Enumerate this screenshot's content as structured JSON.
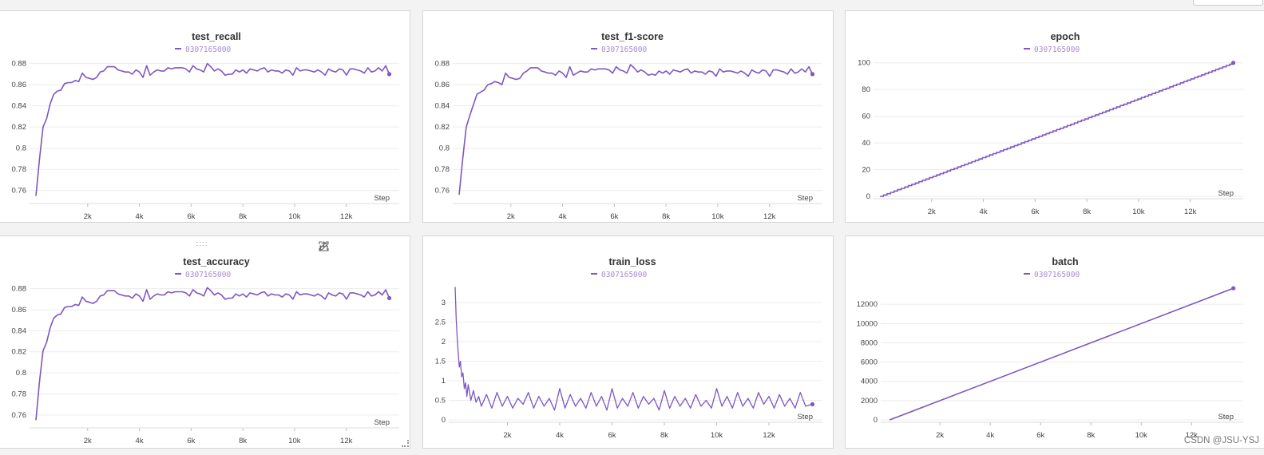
{
  "colors": {
    "line": "#7e57c2",
    "legend": "#a98bd3"
  },
  "axis_step_label": "Step",
  "watermark": "CSDN @JSU-YSJ",
  "toolbar_icons": [
    "share-icon",
    "edit-icon",
    "fullscreen-icon",
    "more-icon"
  ],
  "chart_data": [
    {
      "id": "test_recall",
      "type": "line",
      "title": "test_recall",
      "legend": "0307165000",
      "xlabel": "Step",
      "xlim": [
        0,
        13800
      ],
      "ylim": [
        0.75,
        0.885
      ],
      "xticks": [
        2000,
        4000,
        6000,
        8000,
        10000,
        12000
      ],
      "xtick_labels": [
        "2k",
        "4k",
        "6k",
        "8k",
        "10k",
        "12k"
      ],
      "yticks": [
        0.76,
        0.78,
        0.8,
        0.82,
        0.84,
        0.86,
        0.88
      ],
      "ytick_labels": [
        "0.76",
        "0.78",
        "0.8",
        "0.82",
        "0.84",
        "0.86",
        "0.88"
      ],
      "x": [
        0,
        138,
        276,
        414,
        552,
        690,
        828,
        966,
        1104,
        1242,
        1380,
        1518,
        1656,
        1794,
        1932,
        2070,
        2208,
        2346,
        2484,
        2622,
        2760,
        2898,
        3036,
        3174,
        3312,
        3450,
        3588,
        3726,
        3864,
        4002,
        4140,
        4278,
        4416,
        4554,
        4692,
        4830,
        4968,
        5106,
        5244,
        5382,
        5520,
        5658,
        5796,
        5934,
        6072,
        6210,
        6348,
        6486,
        6624,
        6762,
        6900,
        7038,
        7176,
        7314,
        7452,
        7590,
        7728,
        7866,
        8004,
        8142,
        8280,
        8418,
        8556,
        8694,
        8832,
        8970,
        9108,
        9246,
        9384,
        9522,
        9660,
        9798,
        9936,
        10074,
        10212,
        10350,
        10488,
        10626,
        10764,
        10902,
        11040,
        11178,
        11316,
        11454,
        11592,
        11730,
        11868,
        12006,
        12144,
        12282,
        12420,
        12558,
        12696,
        12834,
        12972,
        13110,
        13248,
        13386,
        13524,
        13662
      ],
      "values": [
        0.755,
        0.79,
        0.82,
        0.828,
        0.842,
        0.851,
        0.854,
        0.855,
        0.861,
        0.862,
        0.862,
        0.864,
        0.863,
        0.871,
        0.867,
        0.866,
        0.865,
        0.867,
        0.872,
        0.873,
        0.877,
        0.877,
        0.877,
        0.874,
        0.873,
        0.872,
        0.872,
        0.87,
        0.874,
        0.872,
        0.867,
        0.878,
        0.869,
        0.872,
        0.874,
        0.873,
        0.873,
        0.876,
        0.875,
        0.876,
        0.876,
        0.876,
        0.875,
        0.872,
        0.878,
        0.875,
        0.874,
        0.872,
        0.88,
        0.877,
        0.873,
        0.875,
        0.873,
        0.869,
        0.87,
        0.87,
        0.874,
        0.872,
        0.874,
        0.871,
        0.875,
        0.874,
        0.873,
        0.875,
        0.876,
        0.872,
        0.874,
        0.873,
        0.873,
        0.871,
        0.874,
        0.873,
        0.869,
        0.876,
        0.873,
        0.874,
        0.874,
        0.873,
        0.872,
        0.874,
        0.872,
        0.869,
        0.875,
        0.873,
        0.872,
        0.875,
        0.874,
        0.869,
        0.875,
        0.875,
        0.874,
        0.873,
        0.871,
        0.876,
        0.872,
        0.873,
        0.876,
        0.873,
        0.878,
        0.87
      ]
    },
    {
      "id": "test_f1_score",
      "type": "line",
      "title": "test_f1-score",
      "legend": "0307165000",
      "xlabel": "Step",
      "xlim": [
        0,
        13800
      ],
      "ylim": [
        0.75,
        0.885
      ],
      "xticks": [
        2000,
        4000,
        6000,
        8000,
        10000,
        12000
      ],
      "xtick_labels": [
        "2k",
        "4k",
        "6k",
        "8k",
        "10k",
        "12k"
      ],
      "yticks": [
        0.76,
        0.78,
        0.8,
        0.82,
        0.84,
        0.86,
        0.88
      ],
      "ytick_labels": [
        "0.76",
        "0.78",
        "0.8",
        "0.82",
        "0.84",
        "0.86",
        "0.88"
      ],
      "x": [
        0,
        138,
        276,
        414,
        552,
        690,
        828,
        966,
        1104,
        1242,
        1380,
        1518,
        1656,
        1794,
        1932,
        2070,
        2208,
        2346,
        2484,
        2622,
        2760,
        2898,
        3036,
        3174,
        3312,
        3450,
        3588,
        3726,
        3864,
        4002,
        4140,
        4278,
        4416,
        4554,
        4692,
        4830,
        4968,
        5106,
        5244,
        5382,
        5520,
        5658,
        5796,
        5934,
        6072,
        6210,
        6348,
        6486,
        6624,
        6762,
        6900,
        7038,
        7176,
        7314,
        7452,
        7590,
        7728,
        7866,
        8004,
        8142,
        8280,
        8418,
        8556,
        8694,
        8832,
        8970,
        9108,
        9246,
        9384,
        9522,
        9660,
        9798,
        9936,
        10074,
        10212,
        10350,
        10488,
        10626,
        10764,
        10902,
        11040,
        11178,
        11316,
        11454,
        11592,
        11730,
        11868,
        12006,
        12144,
        12282,
        12420,
        12558,
        12696,
        12834,
        12972,
        13110,
        13248,
        13386,
        13524,
        13662
      ],
      "values": [
        0.756,
        0.79,
        0.82,
        0.831,
        0.841,
        0.851,
        0.853,
        0.855,
        0.86,
        0.861,
        0.863,
        0.862,
        0.86,
        0.871,
        0.867,
        0.866,
        0.865,
        0.866,
        0.871,
        0.873,
        0.876,
        0.876,
        0.876,
        0.873,
        0.872,
        0.871,
        0.871,
        0.869,
        0.873,
        0.871,
        0.867,
        0.877,
        0.869,
        0.871,
        0.873,
        0.872,
        0.872,
        0.875,
        0.874,
        0.875,
        0.875,
        0.875,
        0.874,
        0.871,
        0.877,
        0.874,
        0.873,
        0.871,
        0.879,
        0.876,
        0.872,
        0.874,
        0.872,
        0.869,
        0.87,
        0.869,
        0.873,
        0.871,
        0.873,
        0.87,
        0.874,
        0.873,
        0.872,
        0.874,
        0.875,
        0.871,
        0.873,
        0.872,
        0.872,
        0.87,
        0.873,
        0.872,
        0.868,
        0.875,
        0.872,
        0.873,
        0.873,
        0.872,
        0.871,
        0.873,
        0.871,
        0.868,
        0.874,
        0.872,
        0.871,
        0.874,
        0.873,
        0.868,
        0.874,
        0.874,
        0.873,
        0.872,
        0.87,
        0.875,
        0.871,
        0.872,
        0.875,
        0.872,
        0.877,
        0.87
      ]
    },
    {
      "id": "epoch",
      "type": "line",
      "title": "epoch",
      "legend": "0307165000",
      "xlabel": "Step",
      "xlim": [
        0,
        13800
      ],
      "ylim": [
        0,
        104
      ],
      "xticks": [
        2000,
        4000,
        6000,
        8000,
        10000,
        12000
      ],
      "xtick_labels": [
        "2k",
        "4k",
        "6k",
        "8k",
        "10k",
        "12k"
      ],
      "yticks": [
        0,
        20,
        40,
        60,
        80,
        100
      ],
      "ytick_labels": [
        "0",
        "20",
        "40",
        "60",
        "80",
        "100"
      ],
      "x": [
        0,
        13662
      ],
      "values": [
        0,
        100
      ],
      "shape": "staircase"
    },
    {
      "id": "test_accuracy",
      "type": "line",
      "title": "test_accuracy",
      "legend": "0307165000",
      "xlabel": "Step",
      "xlim": [
        0,
        13800
      ],
      "ylim": [
        0.75,
        0.885
      ],
      "xticks": [
        2000,
        4000,
        6000,
        8000,
        10000,
        12000
      ],
      "xtick_labels": [
        "2k",
        "4k",
        "6k",
        "8k",
        "10k",
        "12k"
      ],
      "yticks": [
        0.76,
        0.78,
        0.8,
        0.82,
        0.84,
        0.86,
        0.88
      ],
      "ytick_labels": [
        "0.76",
        "0.78",
        "0.8",
        "0.82",
        "0.84",
        "0.86",
        "0.88"
      ],
      "x": [
        0,
        138,
        276,
        414,
        552,
        690,
        828,
        966,
        1104,
        1242,
        1380,
        1518,
        1656,
        1794,
        1932,
        2070,
        2208,
        2346,
        2484,
        2622,
        2760,
        2898,
        3036,
        3174,
        3312,
        3450,
        3588,
        3726,
        3864,
        4002,
        4140,
        4278,
        4416,
        4554,
        4692,
        4830,
        4968,
        5106,
        5244,
        5382,
        5520,
        5658,
        5796,
        5934,
        6072,
        6210,
        6348,
        6486,
        6624,
        6762,
        6900,
        7038,
        7176,
        7314,
        7452,
        7590,
        7728,
        7866,
        8004,
        8142,
        8280,
        8418,
        8556,
        8694,
        8832,
        8970,
        9108,
        9246,
        9384,
        9522,
        9660,
        9798,
        9936,
        10074,
        10212,
        10350,
        10488,
        10626,
        10764,
        10902,
        11040,
        11178,
        11316,
        11454,
        11592,
        11730,
        11868,
        12006,
        12144,
        12282,
        12420,
        12558,
        12696,
        12834,
        12972,
        13110,
        13248,
        13386,
        13524,
        13662
      ],
      "values": [
        0.755,
        0.792,
        0.821,
        0.829,
        0.843,
        0.852,
        0.855,
        0.856,
        0.862,
        0.863,
        0.863,
        0.865,
        0.864,
        0.872,
        0.868,
        0.867,
        0.866,
        0.868,
        0.873,
        0.874,
        0.878,
        0.878,
        0.878,
        0.875,
        0.874,
        0.873,
        0.873,
        0.871,
        0.875,
        0.873,
        0.868,
        0.879,
        0.87,
        0.873,
        0.875,
        0.874,
        0.874,
        0.877,
        0.876,
        0.877,
        0.877,
        0.877,
        0.876,
        0.873,
        0.879,
        0.876,
        0.875,
        0.873,
        0.881,
        0.878,
        0.874,
        0.876,
        0.874,
        0.87,
        0.871,
        0.871,
        0.875,
        0.873,
        0.875,
        0.872,
        0.876,
        0.875,
        0.874,
        0.876,
        0.877,
        0.873,
        0.875,
        0.874,
        0.874,
        0.872,
        0.875,
        0.874,
        0.87,
        0.877,
        0.874,
        0.875,
        0.875,
        0.874,
        0.873,
        0.875,
        0.873,
        0.87,
        0.876,
        0.874,
        0.873,
        0.876,
        0.875,
        0.87,
        0.876,
        0.876,
        0.875,
        0.874,
        0.872,
        0.877,
        0.873,
        0.874,
        0.877,
        0.874,
        0.879,
        0.871
      ]
    },
    {
      "id": "train_loss",
      "type": "line",
      "title": "train_loss",
      "legend": "0307165000",
      "xlabel": "Step",
      "xlim": [
        0,
        13800
      ],
      "ylim": [
        0,
        3.45
      ],
      "xticks": [
        2000,
        4000,
        6000,
        8000,
        10000,
        12000
      ],
      "xtick_labels": [
        "2k",
        "4k",
        "6k",
        "8k",
        "10k",
        "12k"
      ],
      "yticks": [
        0,
        0.5,
        1,
        1.5,
        2,
        2.5,
        3
      ],
      "ytick_labels": [
        "0",
        "0.5",
        "1",
        "1.5",
        "2",
        "2.5",
        "3"
      ],
      "x": [
        0,
        40,
        80,
        120,
        160,
        200,
        250,
        300,
        350,
        400,
        450,
        500,
        600,
        700,
        800,
        900,
        1000,
        1200,
        1400,
        1600,
        1800,
        2000,
        2200,
        2400,
        2600,
        2800,
        3000,
        3200,
        3400,
        3600,
        3800,
        4000,
        4200,
        4400,
        4600,
        4800,
        5000,
        5200,
        5400,
        5600,
        5800,
        6000,
        6200,
        6400,
        6600,
        6800,
        7000,
        7200,
        7400,
        7600,
        7800,
        8000,
        8200,
        8400,
        8600,
        8800,
        9000,
        9200,
        9400,
        9600,
        9800,
        10000,
        10200,
        10400,
        10600,
        10800,
        11000,
        11200,
        11400,
        11600,
        11800,
        12000,
        12200,
        12400,
        12600,
        12800,
        13000,
        13200,
        13400,
        13662
      ],
      "values": [
        3.4,
        2.6,
        2.1,
        1.7,
        1.35,
        1.5,
        1.1,
        1.2,
        0.8,
        0.95,
        0.6,
        0.9,
        0.5,
        0.75,
        0.45,
        0.6,
        0.35,
        0.65,
        0.3,
        0.7,
        0.35,
        0.6,
        0.3,
        0.55,
        0.4,
        0.7,
        0.3,
        0.6,
        0.35,
        0.55,
        0.25,
        0.8,
        0.3,
        0.65,
        0.35,
        0.55,
        0.3,
        0.7,
        0.35,
        0.6,
        0.25,
        0.8,
        0.3,
        0.55,
        0.35,
        0.7,
        0.3,
        0.6,
        0.4,
        0.55,
        0.25,
        0.75,
        0.3,
        0.6,
        0.35,
        0.55,
        0.3,
        0.65,
        0.35,
        0.5,
        0.3,
        0.8,
        0.35,
        0.6,
        0.3,
        0.7,
        0.35,
        0.55,
        0.3,
        0.7,
        0.4,
        0.6,
        0.3,
        0.65,
        0.35,
        0.55,
        0.3,
        0.7,
        0.35,
        0.4
      ]
    },
    {
      "id": "batch",
      "type": "line",
      "title": "batch",
      "legend": "0307165000",
      "xlabel": "Step",
      "xlim": [
        -100,
        13800
      ],
      "ylim": [
        0,
        14000
      ],
      "xticks": [
        2000,
        4000,
        6000,
        8000,
        10000,
        12000
      ],
      "xtick_labels": [
        "2k",
        "4k",
        "6k",
        "8k",
        "10k",
        "12k"
      ],
      "yticks": [
        0,
        2000,
        4000,
        6000,
        8000,
        10000,
        12000
      ],
      "ytick_labels": [
        "0",
        "2000",
        "4000",
        "6000",
        "8000",
        "10000",
        "12000"
      ],
      "x": [
        0,
        13662
      ],
      "values": [
        0,
        13662
      ]
    }
  ]
}
